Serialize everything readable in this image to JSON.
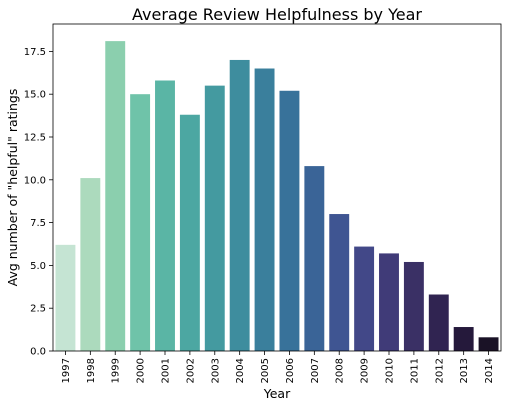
{
  "chart_data": {
    "type": "bar",
    "title": "Average Review Helpfulness by Year",
    "xlabel": "Year",
    "ylabel": "Avg number of \"helpful\" ratings",
    "categories": [
      "1997",
      "1998",
      "1999",
      "2000",
      "2001",
      "2002",
      "2003",
      "2004",
      "2005",
      "2006",
      "2007",
      "2008",
      "2009",
      "2010",
      "2011",
      "2012",
      "2013",
      "2014"
    ],
    "values": [
      6.2,
      10.1,
      18.1,
      15.0,
      15.8,
      13.8,
      15.5,
      17.0,
      16.5,
      15.2,
      10.8,
      8.0,
      6.1,
      5.7,
      5.2,
      3.3,
      1.4,
      0.8
    ],
    "ylim": [
      0,
      19.1
    ],
    "yticks": [
      0.0,
      2.5,
      5.0,
      7.5,
      10.0,
      12.5,
      15.0,
      17.5
    ],
    "ytick_labels": [
      "0.0",
      "2.5",
      "5.0",
      "7.5",
      "10.0",
      "12.5",
      "15.0",
      "17.5"
    ],
    "colors": [
      "#c5e4d3",
      "#acdabd",
      "#8bcfae",
      "#6fc3a9",
      "#5ab5a5",
      "#4ca7a2",
      "#449aa0",
      "#3e8d9e",
      "#3a7f9c",
      "#38729a",
      "#3a6497",
      "#3f5592",
      "#424888",
      "#403b78",
      "#3a3065",
      "#302451",
      "#25193b",
      "#1a1226"
    ],
    "grid": false,
    "legend": "none"
  }
}
